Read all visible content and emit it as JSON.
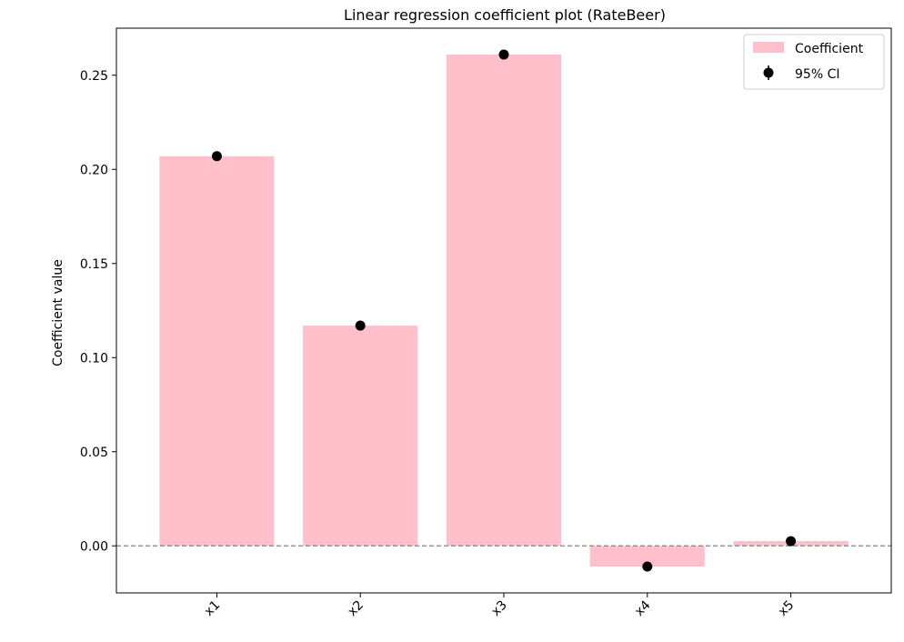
{
  "chart_data": {
    "type": "bar",
    "title": "Linear regression coefficient plot (RateBeer)",
    "xlabel": "",
    "ylabel": "Coefficient value",
    "categories": [
      "x1",
      "x2",
      "x3",
      "x4",
      "x5"
    ],
    "series": [
      {
        "name": "Coefficient",
        "type": "bar",
        "values": [
          0.207,
          0.117,
          0.261,
          -0.011,
          0.0025
        ]
      },
      {
        "name": "95% CI",
        "type": "errorbar-point",
        "values": [
          0.207,
          0.117,
          0.261,
          -0.011,
          0.0025
        ]
      }
    ],
    "ylim": [
      -0.025,
      0.275
    ],
    "yticks": [
      0.0,
      0.05,
      0.1,
      0.15,
      0.2,
      0.25
    ],
    "ytick_labels": [
      "0.00",
      "0.05",
      "0.10",
      "0.15",
      "0.20",
      "0.25"
    ],
    "reference_line": {
      "y": 0,
      "style": "dashed",
      "color": "#808080"
    },
    "grid": false,
    "legend_position": "top-right",
    "colors": {
      "bar": "#ffc0cb",
      "point": "#000000",
      "frame": "#000000"
    }
  }
}
